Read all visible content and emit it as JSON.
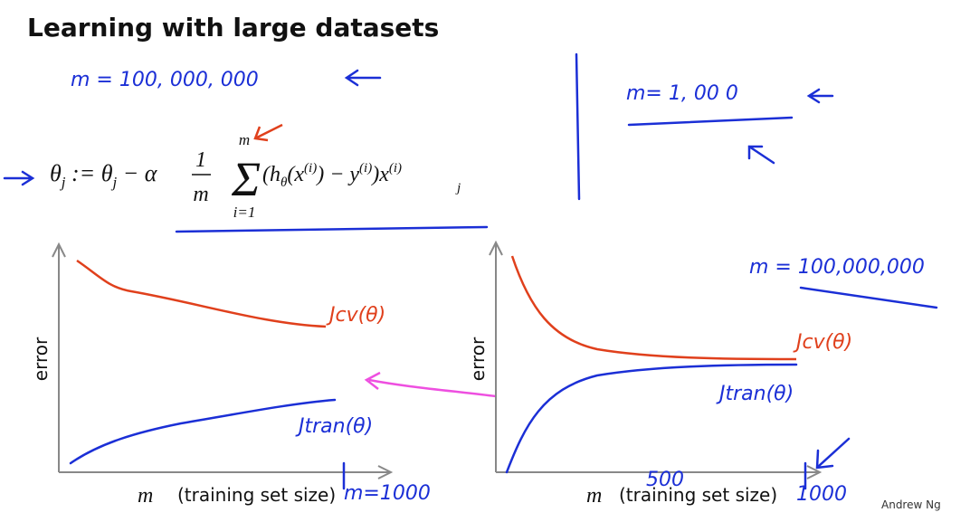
{
  "header": {
    "title": "Learning with large datasets"
  },
  "annotations": {
    "m_large": "m = 100, 000, 000",
    "m_small": "m= 1, 00 0",
    "m_large_right": "m = 100,000,000",
    "jcv_left": "Jcv(θ)",
    "jtrain_left": "Jtran(θ)",
    "jcv_right": "Jcv(θ)",
    "jtrain_right": "Jtran(θ)",
    "m_left_axis": "m=1000",
    "tick_500": "500",
    "tick_1000": "1000"
  },
  "equation": {
    "lhs": [
      "θ",
      "j",
      " := θ",
      "j",
      " − α"
    ],
    "frac": {
      "num": "1",
      "den": "m"
    },
    "sum": {
      "symbol": "Σ",
      "upper": "m",
      "lower": "i=1"
    },
    "body": [
      "(h",
      "θ",
      "(x",
      "(i)",
      ") − y",
      "(i)",
      ")x",
      "(i)",
      "j"
    ]
  },
  "plots": [
    {
      "y_label": "error",
      "x_var": "m",
      "x_label": "(training set size)"
    },
    {
      "y_label": "error",
      "x_var": "m",
      "x_label": "(training set size)"
    }
  ],
  "footer": {
    "author": "Andrew Ng"
  }
}
